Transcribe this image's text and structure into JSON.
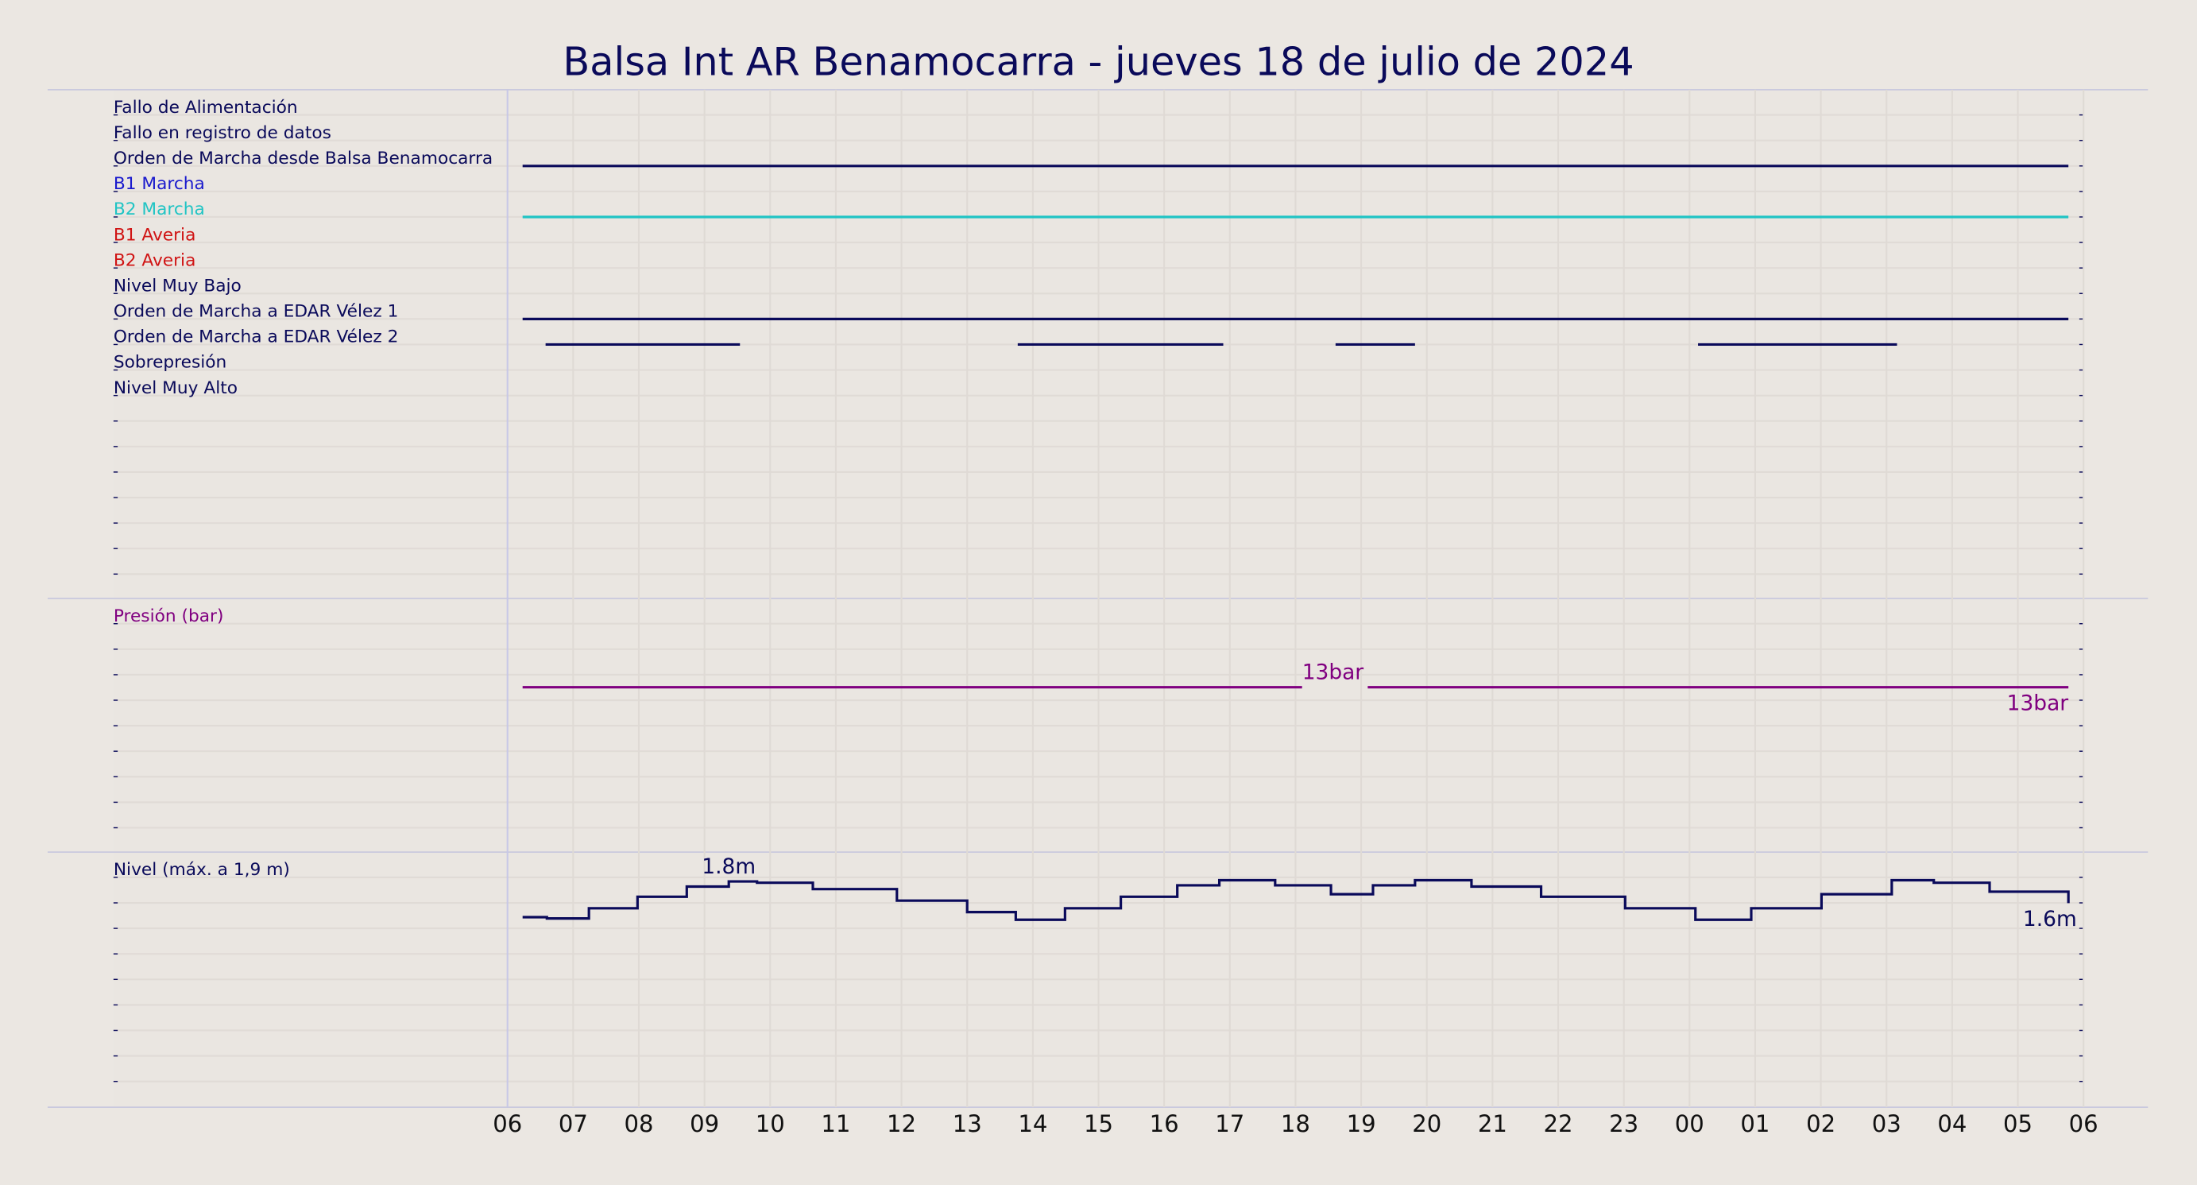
{
  "chart_data": [
    {
      "type": "timeline",
      "title": "Balsa Int AR Benamocarra   -   jueves 18 de julio de 2024",
      "xlim": [
        0,
        30
      ],
      "signals": [
        {
          "name": "Fallo de Alimentación",
          "color": "#0a0a5a",
          "segments": []
        },
        {
          "name": "Fallo en registro de datos",
          "color": "#0a0a5a",
          "segments": []
        },
        {
          "name": "Orden de Marcha desde Balsa Benamocarra",
          "color": "#0a0a5a",
          "segments": [
            [
              6.23,
              29.77
            ]
          ]
        },
        {
          "name": "B1 Marcha",
          "color": "#1a1acd",
          "segments": []
        },
        {
          "name": "B2 Marcha",
          "color": "#20c4c4",
          "segments": [
            [
              6.23,
              29.77
            ]
          ]
        },
        {
          "name": "B1 Averia",
          "color": "#d01414",
          "segments": []
        },
        {
          "name": "B2 Averia",
          "color": "#d01414",
          "segments": []
        },
        {
          "name": "Nivel Muy Bajo",
          "color": "#0a0a5a",
          "segments": []
        },
        {
          "name": "Orden de Marcha a EDAR Vélez 1",
          "color": "#0a0a5a",
          "segments": [
            [
              6.23,
              29.77
            ]
          ]
        },
        {
          "name": "Orden de Marcha a EDAR Vélez 2",
          "color": "#0a0a5a",
          "segments": [
            [
              6.58,
              9.54
            ],
            [
              13.77,
              16.9
            ],
            [
              18.61,
              19.82
            ],
            [
              24.13,
              27.16
            ]
          ]
        },
        {
          "name": "Sobrepresión",
          "color": "#0a0a5a",
          "segments": []
        },
        {
          "name": "Nivel Muy Alto",
          "color": "#0a0a5a",
          "segments": []
        }
      ]
    },
    {
      "type": "line",
      "title": "Presión (bar)",
      "color": "#800080",
      "step": false,
      "xlim": [
        0,
        30
      ],
      "ylim": [
        0,
        20
      ],
      "x": [
        6.23,
        18.1,
        18.6,
        19.1,
        29.77
      ],
      "values": [
        13,
        13,
        null,
        13,
        13
      ],
      "value_labels": [
        null,
        "13bar",
        null,
        null,
        "13bar"
      ]
    },
    {
      "type": "line",
      "title": "Nivel (máx. a 1,9 m)",
      "color": "#0a0a5a",
      "step": true,
      "xlim": [
        0,
        30
      ],
      "ylim": [
        0,
        2
      ],
      "x": [
        6.23,
        6.6,
        7.24,
        7.98,
        8.73,
        9.37,
        9.8,
        10.65,
        11.93,
        13.0,
        13.74,
        14.49,
        15.34,
        16.2,
        16.84,
        17.69,
        18.54,
        19.18,
        19.82,
        20.68,
        21.74,
        23.02,
        24.09,
        24.94,
        26.01,
        27.08,
        27.72,
        28.57,
        29.77
      ],
      "values": [
        1.49,
        1.48,
        1.56,
        1.65,
        1.73,
        1.77,
        1.76,
        1.71,
        1.62,
        1.53,
        1.47,
        1.56,
        1.65,
        1.74,
        1.78,
        1.74,
        1.67,
        1.74,
        1.78,
        1.73,
        1.65,
        1.56,
        1.47,
        1.56,
        1.67,
        1.78,
        1.76,
        1.69,
        1.6
      ],
      "value_labels": [
        null,
        null,
        null,
        null,
        null,
        "1.8m",
        null,
        null,
        null,
        null,
        null,
        null,
        null,
        null,
        null,
        null,
        null,
        null,
        null,
        null,
        null,
        null,
        null,
        null,
        null,
        null,
        null,
        null,
        "1.6m"
      ],
      "xticks": [
        {
          "value": 6,
          "label": "06"
        },
        {
          "value": 7,
          "label": "07"
        },
        {
          "value": 8,
          "label": "08"
        },
        {
          "value": 9,
          "label": "09"
        },
        10,
        11,
        12,
        13,
        14,
        15,
        16,
        17,
        18,
        19,
        20,
        21,
        22,
        23,
        {
          "value": 24,
          "label": "00"
        },
        {
          "value": 25,
          "label": "01"
        },
        {
          "value": 26,
          "label": "02"
        },
        {
          "value": 27,
          "label": "03"
        },
        {
          "value": 28,
          "label": "04"
        },
        {
          "value": 29,
          "label": "05"
        },
        {
          "value": 30,
          "label": "06"
        }
      ]
    }
  ]
}
